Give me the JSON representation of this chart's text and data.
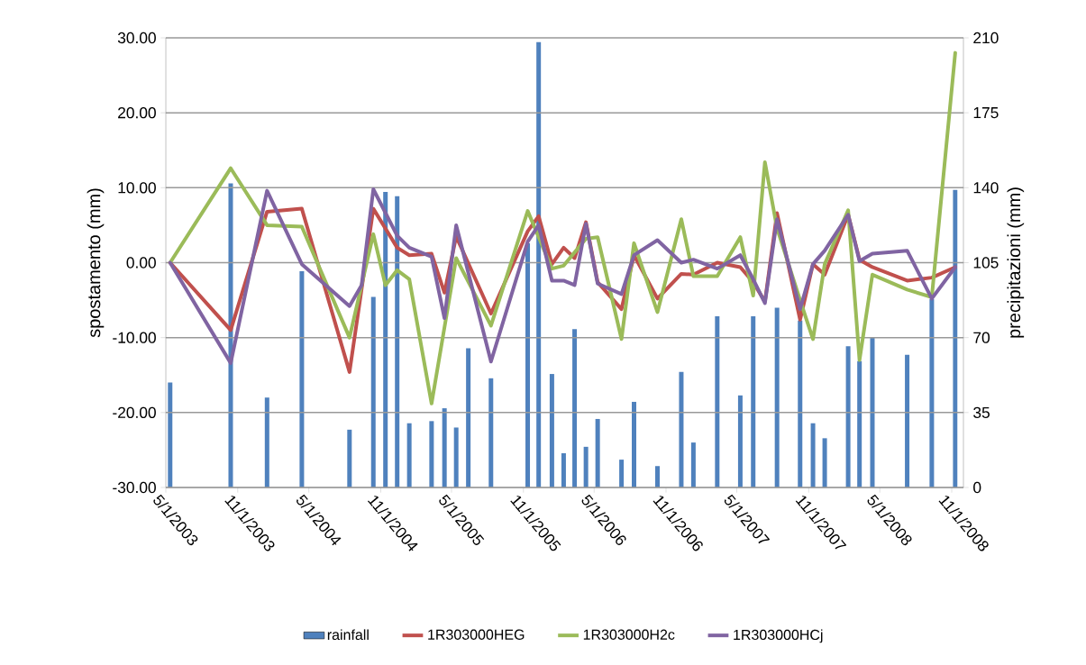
{
  "chart_data": {
    "type": "line",
    "ylabel": "spostamento (mm)",
    "y2label": "precipitazioni (mm)",
    "x": [
      "2003-05-12",
      "2003-10-14",
      "2004-01-15",
      "2004-04-13",
      "2004-08-13",
      "2004-09-13",
      "2004-10-13",
      "2004-11-13",
      "2004-12-13",
      "2005-01-13",
      "2005-03-11",
      "2005-04-13",
      "2005-05-13",
      "2005-06-13",
      "2005-08-10",
      "2005-11-12",
      "2005-12-10",
      "2006-01-13",
      "2006-02-12",
      "2006-03-12",
      "2006-04-10",
      "2006-05-10",
      "2006-07-10",
      "2006-08-11",
      "2006-10-10",
      "2006-12-10",
      "2007-01-10",
      "2007-03-12",
      "2007-05-10",
      "2007-06-12",
      "2007-07-12",
      "2007-08-12",
      "2007-10-10",
      "2007-11-12",
      "2007-12-12",
      "2008-02-10",
      "2008-03-10",
      "2008-04-12",
      "2008-07-10",
      "2008-09-11",
      "2008-11-10"
    ],
    "xlim": [
      "2003-05-01",
      "2008-12-01"
    ],
    "xticks": [
      {
        "value": "2003-05-01",
        "label": "5/1/2003"
      },
      {
        "value": "2003-11-01",
        "label": "11/1/2003"
      },
      {
        "value": "2004-05-01",
        "label": "5/1/2004"
      },
      {
        "value": "2004-11-01",
        "label": "11/1/2004"
      },
      {
        "value": "2005-05-01",
        "label": "5/1/2005"
      },
      {
        "value": "2005-11-01",
        "label": "11/1/2005"
      },
      {
        "value": "2006-05-01",
        "label": "5/1/2006"
      },
      {
        "value": "2006-11-01",
        "label": "11/1/2006"
      },
      {
        "value": "2007-05-01",
        "label": "5/1/2007"
      },
      {
        "value": "2007-11-01",
        "label": "11/1/2007"
      },
      {
        "value": "2008-05-01",
        "label": "5/1/2008"
      },
      {
        "value": "2008-11-01",
        "label": "11/1/2008"
      }
    ],
    "ylim": [
      -30,
      30
    ],
    "yticks": [
      {
        "value": -30,
        "label": "-30.00"
      },
      {
        "value": -20,
        "label": "-20.00"
      },
      {
        "value": -10,
        "label": "-10.00"
      },
      {
        "value": 0,
        "label": "0.00"
      },
      {
        "value": 10,
        "label": "10.00"
      },
      {
        "value": 20,
        "label": "20.00"
      },
      {
        "value": 30,
        "label": "30.00"
      }
    ],
    "y2lim": [
      0,
      210
    ],
    "y2ticks": [
      0,
      35,
      70,
      105,
      140,
      175,
      210
    ],
    "grid": "y",
    "legend": "bottom",
    "series": [
      {
        "name": "rainfall",
        "type": "bar",
        "axis": "y2",
        "color": "#4f81bd",
        "values": [
          49,
          142,
          42,
          101,
          27,
          null,
          89,
          138,
          136,
          30,
          31,
          37,
          28,
          65,
          51,
          114,
          208,
          53,
          16,
          74,
          19,
          32,
          13,
          40,
          10,
          54,
          21,
          80,
          43,
          80,
          null,
          84,
          78,
          30,
          23,
          66,
          59,
          70,
          62,
          88,
          139
        ]
      },
      {
        "name": "1R303000HEG",
        "color": "#c0504d",
        "x": [
          "2003-05-12",
          "2003-10-14",
          "2004-01-15",
          "2004-04-13",
          "2004-08-13",
          "2004-10-13",
          "2004-12-13",
          "2005-01-13",
          "2005-03-11",
          "2005-04-13",
          "2005-05-13",
          "2005-08-10",
          "2005-11-12",
          "2005-12-10",
          "2006-01-13",
          "2006-02-12",
          "2006-03-12",
          "2006-04-10",
          "2006-05-10",
          "2006-07-10",
          "2006-08-11",
          "2006-10-10",
          "2006-12-10",
          "2007-01-10",
          "2007-03-12",
          "2007-05-10",
          "2007-06-12",
          "2007-07-12",
          "2007-08-12",
          "2007-10-10",
          "2007-11-12",
          "2007-12-12",
          "2008-02-10",
          "2008-03-10",
          "2008-04-12",
          "2008-07-10",
          "2008-09-11",
          "2008-11-10"
        ],
        "values": [
          0,
          -9.0,
          6.8,
          7.2,
          -14.6,
          7.2,
          2.0,
          1.0,
          1.2,
          -4.0,
          3.5,
          -6.8,
          4.2,
          6.2,
          -0.2,
          2.0,
          0.6,
          5.4,
          -2.6,
          -6.2,
          1.0,
          -4.8,
          -1.5,
          -1.6,
          0,
          -0.6,
          -2.6,
          -5.2,
          6.6,
          -7.6,
          -0.2,
          -1.6,
          6.4,
          0.4,
          -0.6,
          -2.4,
          -2.0,
          -0.6
        ]
      },
      {
        "name": "1R303000H2c",
        "color": "#9bbb59",
        "x": [
          "2003-05-12",
          "2003-10-14",
          "2004-01-15",
          "2004-04-13",
          "2004-08-13",
          "2004-10-13",
          "2004-11-13",
          "2004-12-13",
          "2005-01-13",
          "2005-03-11",
          "2005-05-13",
          "2005-08-10",
          "2005-11-12",
          "2006-01-13",
          "2006-02-12",
          "2006-04-10",
          "2006-05-10",
          "2006-07-10",
          "2006-08-11",
          "2006-10-10",
          "2006-12-10",
          "2007-01-10",
          "2007-03-12",
          "2007-05-10",
          "2007-06-12",
          "2007-07-12",
          "2007-08-12",
          "2007-10-10",
          "2007-11-12",
          "2007-12-12",
          "2008-02-10",
          "2008-03-10",
          "2008-04-12",
          "2008-07-10",
          "2008-09-11",
          "2008-11-10"
        ],
        "values": [
          0,
          12.6,
          5.0,
          4.8,
          -10.0,
          3.8,
          -3.0,
          -1.0,
          -2.2,
          -18.8,
          0.6,
          -8.4,
          6.9,
          -0.8,
          -0.4,
          3.2,
          3.4,
          -10.2,
          2.6,
          -6.6,
          5.8,
          -1.8,
          -1.8,
          3.4,
          -4.4,
          13.4,
          4.6,
          -5.0,
          -10.2,
          -0.2,
          7.0,
          -13.0,
          -1.6,
          -3.6,
          -4.6,
          28.0
        ]
      },
      {
        "name": "1R303000HCj",
        "color": "#8064a2",
        "x": [
          "2003-05-12",
          "2003-10-14",
          "2004-01-15",
          "2004-04-13",
          "2004-08-13",
          "2004-09-13",
          "2004-10-13",
          "2004-12-13",
          "2005-01-13",
          "2005-03-11",
          "2005-04-13",
          "2005-05-13",
          "2005-08-10",
          "2005-11-12",
          "2005-12-10",
          "2006-01-13",
          "2006-02-12",
          "2006-03-12",
          "2006-04-10",
          "2006-05-10",
          "2006-07-10",
          "2006-08-11",
          "2006-10-10",
          "2006-12-10",
          "2007-01-10",
          "2007-03-12",
          "2007-05-10",
          "2007-06-12",
          "2007-07-12",
          "2007-08-12",
          "2007-10-10",
          "2007-11-12",
          "2007-12-12",
          "2008-02-10",
          "2008-03-10",
          "2008-04-12",
          "2008-07-10",
          "2008-09-11",
          "2008-11-10"
        ],
        "values": [
          0,
          -13.4,
          9.6,
          -0.2,
          -5.8,
          -3.0,
          9.8,
          3.6,
          2.0,
          0.8,
          -7.4,
          5.0,
          -13.2,
          2.8,
          5.0,
          -2.4,
          -2.4,
          -3.0,
          5.2,
          -2.8,
          -4.2,
          1.0,
          3.0,
          0,
          0.4,
          -0.8,
          1.0,
          -2.2,
          -5.4,
          5.8,
          -6.2,
          -0.2,
          1.6,
          6.4,
          0.2,
          1.2,
          1.6,
          -4.8,
          -0.6
        ]
      }
    ]
  }
}
